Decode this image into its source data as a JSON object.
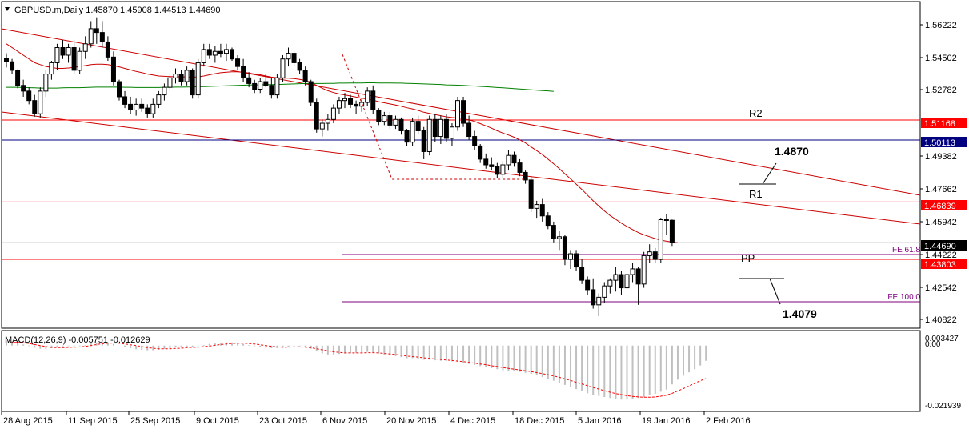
{
  "header": {
    "menu_icon": "triangle-down-icon",
    "title": "GBPUSD.m,Daily  1.45870 1.45908 1.44513 1.44690"
  },
  "macd": {
    "label": "MACD(12,26,9) -0.005751 -0.012629",
    "axis_labels": [
      "0.003427",
      "0.00",
      "-0.021939"
    ]
  },
  "axis": {
    "price_ticks": [
      "1.56222",
      "1.54502",
      "1.52782",
      "1.49382",
      "1.47662",
      "1.45942",
      "1.44222",
      "1.42542",
      "1.40822"
    ],
    "date_ticks": [
      "28 Aug 2015",
      "11 Sep 2015",
      "25 Sep 2015",
      "9 Oct 2015",
      "23 Oct 2015",
      "6 Nov 2015",
      "20 Nov 2015",
      "4 Dec 2015",
      "18 Dec 2015",
      "5 Jan 2016",
      "19 Jan 2016",
      "2 Feb 2016"
    ]
  },
  "levels": [
    {
      "label": "R2",
      "price": "1.51168",
      "color": "#ff0000"
    },
    {
      "label": "R1",
      "price": "1.46839",
      "color": "#ff0000"
    },
    {
      "label": "PP",
      "price": "1.43803",
      "color": "#ff0000"
    },
    {
      "label": "",
      "price": "1.50113",
      "color": "#000080"
    },
    {
      "label": "",
      "price": "1.44690",
      "color": "#000000"
    }
  ],
  "fibo": [
    {
      "label": "FE 61.8",
      "color": "#800080"
    },
    {
      "label": "FE 100.0",
      "color": "#800080"
    }
  ],
  "annotations": [
    {
      "text": "1.4870"
    },
    {
      "text": "1.4079"
    }
  ],
  "colors": {
    "bull": "#ffffff",
    "bear": "#000000",
    "ma_fast": "#cc0000",
    "ma_slow": "#008000",
    "channel": "#cc0000",
    "macd_hist": "#c0c0c0",
    "macd_signal": "#ff0000"
  },
  "chart_data": {
    "type": "candlestick",
    "symbol": "GBPUSD.m",
    "timeframe": "Daily",
    "last_bar": {
      "open": 1.4587,
      "high": 1.45908,
      "low": 1.44513,
      "close": 1.4469
    },
    "ylim": [
      1.4025,
      1.5735
    ],
    "macd_ylim": [
      -0.0245,
      0.0048
    ],
    "candles": [
      [
        1.5445,
        1.547,
        1.5395,
        1.5425
      ],
      [
        1.5425,
        1.544,
        1.536,
        1.538
      ],
      [
        1.538,
        1.5385,
        1.5285,
        1.53
      ],
      [
        1.53,
        1.533,
        1.524,
        1.527
      ],
      [
        1.527,
        1.529,
        1.52,
        1.522
      ],
      [
        1.522,
        1.525,
        1.5135,
        1.515
      ],
      [
        1.515,
        1.529,
        1.513,
        1.527
      ],
      [
        1.527,
        1.538,
        1.524,
        1.536
      ],
      [
        1.536,
        1.543,
        1.533,
        1.542
      ],
      [
        1.542,
        1.552,
        1.538,
        1.55
      ],
      [
        1.55,
        1.554,
        1.544,
        1.546
      ],
      [
        1.546,
        1.552,
        1.542,
        1.55
      ],
      [
        1.55,
        1.554,
        1.536,
        1.538
      ],
      [
        1.538,
        1.55,
        1.536,
        1.548
      ],
      [
        1.548,
        1.556,
        1.544,
        1.552
      ],
      [
        1.552,
        1.564,
        1.55,
        1.56
      ],
      [
        1.56,
        1.566,
        1.552,
        1.558
      ],
      [
        1.558,
        1.564,
        1.55,
        1.553
      ],
      [
        1.553,
        1.556,
        1.543,
        1.545
      ],
      [
        1.545,
        1.548,
        1.53,
        1.532
      ],
      [
        1.532,
        1.533,
        1.522,
        1.524
      ],
      [
        1.524,
        1.527,
        1.518,
        1.52
      ],
      [
        1.52,
        1.524,
        1.515,
        1.517
      ],
      [
        1.517,
        1.523,
        1.514,
        1.52
      ],
      [
        1.52,
        1.523,
        1.516,
        1.518
      ],
      [
        1.518,
        1.52,
        1.513,
        1.515
      ],
      [
        1.515,
        1.523,
        1.513,
        1.52
      ],
      [
        1.52,
        1.527,
        1.518,
        1.525
      ],
      [
        1.525,
        1.531,
        1.522,
        1.529
      ],
      [
        1.529,
        1.536,
        1.527,
        1.534
      ],
      [
        1.534,
        1.539,
        1.531,
        1.536
      ],
      [
        1.536,
        1.538,
        1.53,
        1.532
      ],
      [
        1.532,
        1.54,
        1.53,
        1.538
      ],
      [
        1.538,
        1.539,
        1.523,
        1.525
      ],
      [
        1.525,
        1.544,
        1.523,
        1.542
      ],
      [
        1.542,
        1.552,
        1.54,
        1.549
      ],
      [
        1.549,
        1.552,
        1.544,
        1.546
      ],
      [
        1.546,
        1.551,
        1.542,
        1.548
      ],
      [
        1.548,
        1.552,
        1.545,
        1.547
      ],
      [
        1.547,
        1.552,
        1.543,
        1.549
      ],
      [
        1.549,
        1.55,
        1.543,
        1.544
      ],
      [
        1.544,
        1.546,
        1.538,
        1.54
      ],
      [
        1.54,
        1.544,
        1.532,
        1.534
      ],
      [
        1.534,
        1.537,
        1.529,
        1.531
      ],
      [
        1.531,
        1.533,
        1.526,
        1.528
      ],
      [
        1.528,
        1.534,
        1.526,
        1.532
      ],
      [
        1.532,
        1.536,
        1.529,
        1.53
      ],
      [
        1.53,
        1.534,
        1.523,
        1.525
      ],
      [
        1.525,
        1.536,
        1.523,
        1.534
      ],
      [
        1.534,
        1.546,
        1.532,
        1.544
      ],
      [
        1.544,
        1.55,
        1.54,
        1.547
      ],
      [
        1.547,
        1.548,
        1.54,
        1.542
      ],
      [
        1.542,
        1.544,
        1.536,
        1.538
      ],
      [
        1.538,
        1.54,
        1.53,
        1.532
      ],
      [
        1.532,
        1.533,
        1.519,
        1.521
      ],
      [
        1.521,
        1.523,
        1.505,
        1.507
      ],
      [
        1.507,
        1.512,
        1.503,
        1.51
      ],
      [
        1.51,
        1.515,
        1.506,
        1.512
      ],
      [
        1.512,
        1.52,
        1.51,
        1.518
      ],
      [
        1.518,
        1.524,
        1.515,
        1.522
      ],
      [
        1.522,
        1.526,
        1.518,
        1.523
      ],
      [
        1.523,
        1.525,
        1.518,
        1.52
      ],
      [
        1.52,
        1.522,
        1.515,
        1.519
      ],
      [
        1.519,
        1.523,
        1.516,
        1.521
      ],
      [
        1.521,
        1.529,
        1.519,
        1.527
      ],
      [
        1.527,
        1.53,
        1.515,
        1.517
      ],
      [
        1.517,
        1.518,
        1.509,
        1.511
      ],
      [
        1.511,
        1.516,
        1.509,
        1.514
      ],
      [
        1.514,
        1.516,
        1.507,
        1.509
      ],
      [
        1.509,
        1.514,
        1.507,
        1.512
      ],
      [
        1.512,
        1.513,
        1.504,
        1.506
      ],
      [
        1.506,
        1.507,
        1.498,
        1.5
      ],
      [
        1.5,
        1.513,
        1.498,
        1.511
      ],
      [
        1.511,
        1.514,
        1.504,
        1.506
      ],
      [
        1.506,
        1.508,
        1.491,
        1.495
      ],
      [
        1.495,
        1.514,
        1.493,
        1.512
      ],
      [
        1.512,
        1.515,
        1.5,
        1.503
      ],
      [
        1.503,
        1.514,
        1.499,
        1.512
      ],
      [
        1.512,
        1.515,
        1.5,
        1.502
      ],
      [
        1.502,
        1.51,
        1.498,
        1.508
      ],
      [
        1.508,
        1.524,
        1.506,
        1.522
      ],
      [
        1.522,
        1.524,
        1.508,
        1.51
      ],
      [
        1.51,
        1.514,
        1.501,
        1.503
      ],
      [
        1.503,
        1.506,
        1.496,
        1.498
      ],
      [
        1.498,
        1.499,
        1.489,
        1.491
      ],
      [
        1.491,
        1.494,
        1.486,
        1.488
      ],
      [
        1.488,
        1.492,
        1.485,
        1.487
      ],
      [
        1.487,
        1.489,
        1.481,
        1.483
      ],
      [
        1.483,
        1.49,
        1.481,
        1.488
      ],
      [
        1.488,
        1.496,
        1.485,
        1.493
      ],
      [
        1.493,
        1.495,
        1.487,
        1.489
      ],
      [
        1.489,
        1.491,
        1.482,
        1.484
      ],
      [
        1.484,
        1.485,
        1.478,
        1.48
      ],
      [
        1.48,
        1.482,
        1.463,
        1.465
      ],
      [
        1.465,
        1.469,
        1.46,
        1.467
      ],
      [
        1.467,
        1.47,
        1.458,
        1.461
      ],
      [
        1.461,
        1.463,
        1.454,
        1.456
      ],
      [
        1.456,
        1.458,
        1.447,
        1.449
      ],
      [
        1.449,
        1.453,
        1.443,
        1.45
      ],
      [
        1.45,
        1.451,
        1.435,
        1.438
      ],
      [
        1.438,
        1.443,
        1.433,
        1.441
      ],
      [
        1.441,
        1.443,
        1.432,
        1.434
      ],
      [
        1.434,
        1.438,
        1.425,
        1.427
      ],
      [
        1.427,
        1.429,
        1.419,
        1.422
      ],
      [
        1.422,
        1.428,
        1.412,
        1.414
      ],
      [
        1.414,
        1.42,
        1.408,
        1.418
      ],
      [
        1.418,
        1.426,
        1.415,
        1.424
      ],
      [
        1.424,
        1.428,
        1.42,
        1.427
      ],
      [
        1.427,
        1.434,
        1.421,
        1.43
      ],
      [
        1.43,
        1.432,
        1.419,
        1.423
      ],
      [
        1.423,
        1.433,
        1.421,
        1.43
      ],
      [
        1.43,
        1.436,
        1.426,
        1.433
      ],
      [
        1.433,
        1.434,
        1.414,
        1.425
      ],
      [
        1.425,
        1.442,
        1.423,
        1.44
      ],
      [
        1.44,
        1.446,
        1.436,
        1.442
      ],
      [
        1.442,
        1.444,
        1.436,
        1.438
      ],
      [
        1.438,
        1.46,
        1.436,
        1.459
      ],
      [
        1.459,
        1.462,
        1.451,
        1.4587
      ],
      [
        1.4587,
        1.45908,
        1.44513,
        1.4469
      ]
    ],
    "ma_fast": [
      1.552,
      1.55,
      1.548,
      1.546,
      1.544,
      1.542,
      1.541,
      1.54,
      1.5395,
      1.539,
      1.539,
      1.5392,
      1.5395,
      1.54,
      1.5405,
      1.541,
      1.5412,
      1.5412,
      1.541,
      1.5405,
      1.5398,
      1.539,
      1.5382,
      1.5374,
      1.5368,
      1.536,
      1.5355,
      1.535,
      1.5348,
      1.5347,
      1.5346,
      1.5345,
      1.5345,
      1.5344,
      1.5345,
      1.535,
      1.5356,
      1.5362,
      1.5367,
      1.537,
      1.5372,
      1.5372,
      1.537,
      1.5366,
      1.536,
      1.5356,
      1.535,
      1.5344,
      1.534,
      1.5338,
      1.5338,
      1.5336,
      1.5332,
      1.5326,
      1.5316,
      1.53,
      1.5285,
      1.5272,
      1.5262,
      1.5255,
      1.525,
      1.5244,
      1.5238,
      1.5232,
      1.5228,
      1.5222,
      1.5214,
      1.5208,
      1.5202,
      1.5196,
      1.519,
      1.5182,
      1.5176,
      1.5168,
      1.5158,
      1.5152,
      1.5146,
      1.514,
      1.5134,
      1.513,
      1.5128,
      1.5124,
      1.5118,
      1.511,
      1.5098,
      1.5086,
      1.5074,
      1.506,
      1.5048,
      1.5038,
      1.5026,
      1.5012,
      1.4996,
      1.4975,
      1.4955,
      1.4934,
      1.491,
      1.4885,
      1.486,
      1.4832,
      1.4806,
      1.4778,
      1.475,
      1.472,
      1.469,
      1.4662,
      1.4636,
      1.4612,
      1.4592,
      1.4572,
      1.4554,
      1.4538,
      1.4522,
      1.451,
      1.45,
      1.449,
      1.4482,
      1.4476,
      1.4472,
      1.4468
    ],
    "ma_slow": [
      1.529,
      1.529,
      1.529,
      1.5289,
      1.5288,
      1.5287,
      1.5286,
      1.5286,
      1.5286,
      1.5286,
      1.5287,
      1.5288,
      1.5288,
      1.5288,
      1.5289,
      1.529,
      1.5291,
      1.5291,
      1.5291,
      1.5291,
      1.5291,
      1.529,
      1.529,
      1.5289,
      1.5289,
      1.5289,
      1.5289,
      1.5289,
      1.529,
      1.529,
      1.5291,
      1.5291,
      1.5292,
      1.5292,
      1.5293,
      1.5294,
      1.5295,
      1.5296,
      1.5297,
      1.5298,
      1.5299,
      1.53,
      1.5301,
      1.5302,
      1.5303,
      1.5303,
      1.5304,
      1.5304,
      1.5305,
      1.5306,
      1.5307,
      1.5308,
      1.5309,
      1.531,
      1.531,
      1.531,
      1.531,
      1.5311,
      1.5311,
      1.5312,
      1.5312,
      1.5313,
      1.5313,
      1.5313,
      1.5314,
      1.5314,
      1.5313,
      1.5313,
      1.5313,
      1.5312,
      1.5312,
      1.5311,
      1.531,
      1.5309,
      1.5308,
      1.5307,
      1.5306,
      1.5305,
      1.5303,
      1.5302,
      1.5301,
      1.53,
      1.5298,
      1.5297,
      1.5295,
      1.5293,
      1.5291,
      1.5289,
      1.5287,
      1.5285,
      1.5283,
      1.5281,
      1.5279,
      1.5277,
      1.5275,
      1.5273,
      1.5271,
      1.5268
    ],
    "macd_hist": [
      0.002,
      0.0016,
      0.001,
      0.0004,
      -0.0002,
      -0.0008,
      -0.0012,
      -0.0012,
      -0.001,
      -0.0006,
      -0.0003,
      -0.0002,
      -0.0003,
      -0.0002,
      0.0002,
      0.0008,
      0.0012,
      0.0014,
      0.0012,
      0.0006,
      0.0,
      -0.0006,
      -0.001,
      -0.0014,
      -0.0016,
      -0.0018,
      -0.0018,
      -0.0016,
      -0.0013,
      -0.001,
      -0.0007,
      -0.0005,
      -0.0004,
      -0.0004,
      -0.0002,
      0.0002,
      0.0006,
      0.0008,
      0.001,
      0.0012,
      0.0012,
      0.001,
      0.0006,
      0.0002,
      -0.0002,
      -0.0005,
      -0.0008,
      -0.001,
      -0.001,
      -0.0008,
      -0.0004,
      -0.0002,
      -0.0003,
      -0.0006,
      -0.0012,
      -0.0022,
      -0.003,
      -0.0034,
      -0.0034,
      -0.0032,
      -0.003,
      -0.0028,
      -0.0028,
      -0.0026,
      -0.0024,
      -0.0026,
      -0.003,
      -0.0034,
      -0.0038,
      -0.004,
      -0.0044,
      -0.0048,
      -0.0048,
      -0.005,
      -0.0054,
      -0.0054,
      -0.0056,
      -0.0058,
      -0.0058,
      -0.006,
      -0.0062,
      -0.0066,
      -0.007,
      -0.0074,
      -0.0078,
      -0.0082,
      -0.0086,
      -0.009,
      -0.0094,
      -0.0096,
      -0.0098,
      -0.01,
      -0.0104,
      -0.0108,
      -0.0114,
      -0.012,
      -0.0126,
      -0.0134,
      -0.0142,
      -0.015,
      -0.0158,
      -0.0166,
      -0.0174,
      -0.0182,
      -0.0188,
      -0.0192,
      -0.0196,
      -0.02,
      -0.0204,
      -0.0206,
      -0.0206,
      -0.0204,
      -0.02,
      -0.0196,
      -0.019,
      -0.0184,
      -0.0176,
      -0.0168,
      -0.0148,
      -0.013,
      -0.0115,
      -0.0102,
      -0.009,
      -0.0076,
      -0.0058
    ],
    "macd_signal": [
      0.001,
      0.0012,
      0.0012,
      0.0011,
      0.0008,
      0.0004,
      0.0,
      -0.0004,
      -0.0007,
      -0.0008,
      -0.0008,
      -0.0007,
      -0.0006,
      -0.0005,
      -0.0003,
      0.0,
      0.0004,
      0.0007,
      0.0009,
      0.001,
      0.0009,
      0.0006,
      0.0003,
      0.0,
      -0.0004,
      -0.0008,
      -0.001,
      -0.0012,
      -0.0012,
      -0.0012,
      -0.0011,
      -0.001,
      -0.0008,
      -0.0007,
      -0.0006,
      -0.0004,
      -0.0002,
      0.0001,
      0.0004,
      0.0006,
      0.0008,
      0.0009,
      0.0009,
      0.0008,
      0.0006,
      0.0003,
      0.0,
      -0.0003,
      -0.0005,
      -0.0006,
      -0.0006,
      -0.0005,
      -0.0005,
      -0.0006,
      -0.0008,
      -0.0012,
      -0.0016,
      -0.002,
      -0.0024,
      -0.0026,
      -0.0028,
      -0.0028,
      -0.0028,
      -0.0028,
      -0.0027,
      -0.0027,
      -0.0028,
      -0.003,
      -0.0032,
      -0.0034,
      -0.0037,
      -0.004,
      -0.0042,
      -0.0044,
      -0.0047,
      -0.0049,
      -0.0051,
      -0.0053,
      -0.0055,
      -0.0057,
      -0.0059,
      -0.0061,
      -0.0064,
      -0.0067,
      -0.007,
      -0.0073,
      -0.0077,
      -0.008,
      -0.0084,
      -0.0087,
      -0.009,
      -0.0093,
      -0.0096,
      -0.0099,
      -0.0103,
      -0.0107,
      -0.0111,
      -0.0116,
      -0.0121,
      -0.0127,
      -0.0133,
      -0.014,
      -0.0146,
      -0.0153,
      -0.016,
      -0.0166,
      -0.0172,
      -0.0178,
      -0.0183,
      -0.0187,
      -0.0191,
      -0.0194,
      -0.0196,
      -0.0197,
      -0.0197,
      -0.0196,
      -0.0193,
      -0.0189,
      -0.0182,
      -0.0173,
      -0.0164,
      -0.0154,
      -0.0144,
      -0.0134,
      -0.0126
    ]
  }
}
